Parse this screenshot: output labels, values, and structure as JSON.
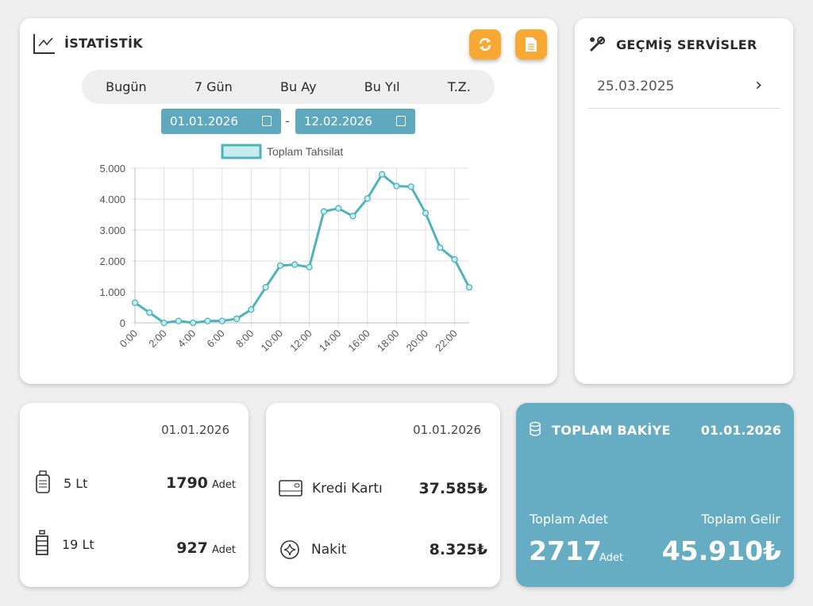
{
  "stats": {
    "title": "İSTATİSTİK",
    "icons": {
      "title": "line-chart-icon",
      "refresh": "refresh-icon",
      "export": "document-icon"
    },
    "ranges": [
      "Bugün",
      "7 Gün",
      "Bu Ay",
      "Bu Yıl",
      "T.Z."
    ],
    "start_date": "01.01.2026",
    "separator": "-",
    "end_date": "12.02.2026"
  },
  "chart_data": {
    "type": "line",
    "legend": "Toplam Tahsilat",
    "legend_position": "top",
    "x": [
      "0:00",
      "1:00",
      "2:00",
      "3:00",
      "4:00",
      "5:00",
      "6:00",
      "7:00",
      "8:00",
      "9:00",
      "10:00",
      "11:00",
      "12:00",
      "13:00",
      "14:00",
      "15:00",
      "16:00",
      "17:00",
      "18:00",
      "19:00",
      "20:00",
      "21:00",
      "22:00",
      "23:00"
    ],
    "x_tick_labels": [
      "0:00",
      "2:00",
      "4:00",
      "6:00",
      "8:00",
      "10:00",
      "12:00",
      "14:00",
      "16:00",
      "18:00",
      "20:00",
      "22:00"
    ],
    "values": [
      650,
      330,
      0,
      60,
      0,
      60,
      60,
      130,
      430,
      1150,
      1850,
      1880,
      1800,
      3600,
      3700,
      3450,
      4020,
      4800,
      4420,
      4400,
      3550,
      2430,
      2050,
      1150
    ],
    "y_ticks": [
      "0",
      "1.000",
      "2.000",
      "3.000",
      "4.000",
      "5.000"
    ],
    "ylim": [
      0,
      5000
    ],
    "grid": true,
    "color": "#4fb3bb"
  },
  "history": {
    "title": "GEÇMİŞ SERVİSLER",
    "items": [
      {
        "date": "25.03.2025"
      }
    ]
  },
  "products": {
    "date": "01.01.2026",
    "items": [
      {
        "label": "5 Lt",
        "count": "1790",
        "unit": "Adet"
      },
      {
        "label": "19 Lt",
        "count": "927",
        "unit": "Adet"
      }
    ]
  },
  "payments": {
    "date": "01.01.2026",
    "items": [
      {
        "label": "Kredi Kartı",
        "amount": "37.585₺"
      },
      {
        "label": "Nakit",
        "amount": "8.325₺"
      }
    ]
  },
  "balance": {
    "title": "TOPLAM BAKİYE",
    "date": "01.01.2026",
    "count_label": "Toplam Adet",
    "count": "2717",
    "unit": "Adet",
    "income_label": "Toplam Gelir",
    "income": "45.910₺",
    "color": "#66adc3"
  }
}
